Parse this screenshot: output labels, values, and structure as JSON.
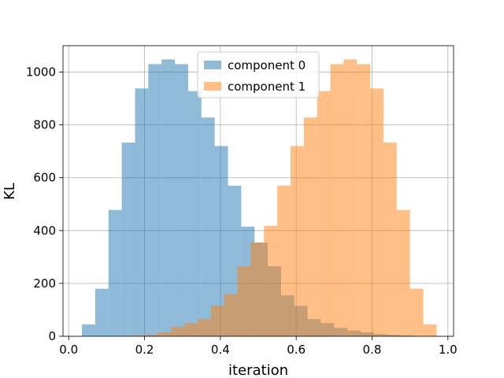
{
  "chart_data": {
    "type": "bar",
    "title": "",
    "xlabel": "iteration",
    "ylabel": "KL",
    "xlim": [
      -0.015,
      1.015
    ],
    "ylim": [
      0,
      1100
    ],
    "xticks": [
      0.0,
      0.2,
      0.4,
      0.6,
      0.8,
      1.0
    ],
    "xtick_labels": [
      "0.0",
      "0.2",
      "0.4",
      "0.6",
      "0.8",
      "1.0"
    ],
    "yticks": [
      0,
      200,
      400,
      600,
      800,
      1000
    ],
    "ytick_labels": [
      "0",
      "200",
      "400",
      "600",
      "800",
      "1000"
    ],
    "grid": true,
    "legend_position": "top-center",
    "series": [
      {
        "name": "component 0",
        "color": "#1f77b4",
        "opacity": 0.5,
        "bins": [
          {
            "x0": 0.035,
            "x1": 0.07,
            "value": 45
          },
          {
            "x0": 0.07,
            "x1": 0.105,
            "value": 180
          },
          {
            "x0": 0.105,
            "x1": 0.14,
            "value": 478
          },
          {
            "x0": 0.14,
            "x1": 0.175,
            "value": 733
          },
          {
            "x0": 0.175,
            "x1": 0.21,
            "value": 938
          },
          {
            "x0": 0.21,
            "x1": 0.245,
            "value": 1030
          },
          {
            "x0": 0.245,
            "x1": 0.28,
            "value": 1048
          },
          {
            "x0": 0.28,
            "x1": 0.315,
            "value": 1030
          },
          {
            "x0": 0.315,
            "x1": 0.35,
            "value": 928
          },
          {
            "x0": 0.35,
            "x1": 0.385,
            "value": 828
          },
          {
            "x0": 0.385,
            "x1": 0.42,
            "value": 720
          },
          {
            "x0": 0.42,
            "x1": 0.455,
            "value": 570
          },
          {
            "x0": 0.455,
            "x1": 0.49,
            "value": 415
          },
          {
            "x0": 0.49,
            "x1": 0.525,
            "value": 355
          },
          {
            "x0": 0.525,
            "x1": 0.56,
            "value": 265
          },
          {
            "x0": 0.56,
            "x1": 0.595,
            "value": 155
          },
          {
            "x0": 0.595,
            "x1": 0.63,
            "value": 115
          },
          {
            "x0": 0.63,
            "x1": 0.665,
            "value": 65
          },
          {
            "x0": 0.665,
            "x1": 0.7,
            "value": 50
          },
          {
            "x0": 0.7,
            "x1": 0.735,
            "value": 32
          },
          {
            "x0": 0.735,
            "x1": 0.77,
            "value": 22
          },
          {
            "x0": 0.77,
            "x1": 0.805,
            "value": 15
          },
          {
            "x0": 0.805,
            "x1": 0.84,
            "value": 8
          },
          {
            "x0": 0.84,
            "x1": 0.875,
            "value": 5
          },
          {
            "x0": 0.875,
            "x1": 0.91,
            "value": 3
          }
        ]
      },
      {
        "name": "component 1",
        "color": "#ff7f0e",
        "opacity": 0.5,
        "bins": [
          {
            "x0": 0.165,
            "x1": 0.2,
            "value": 3
          },
          {
            "x0": 0.2,
            "x1": 0.235,
            "value": 5
          },
          {
            "x0": 0.235,
            "x1": 0.27,
            "value": 14
          },
          {
            "x0": 0.27,
            "x1": 0.305,
            "value": 35
          },
          {
            "x0": 0.305,
            "x1": 0.34,
            "value": 50
          },
          {
            "x0": 0.34,
            "x1": 0.375,
            "value": 65
          },
          {
            "x0": 0.375,
            "x1": 0.41,
            "value": 115
          },
          {
            "x0": 0.41,
            "x1": 0.445,
            "value": 160
          },
          {
            "x0": 0.445,
            "x1": 0.48,
            "value": 265
          },
          {
            "x0": 0.48,
            "x1": 0.515,
            "value": 355
          },
          {
            "x0": 0.515,
            "x1": 0.55,
            "value": 418
          },
          {
            "x0": 0.55,
            "x1": 0.585,
            "value": 570
          },
          {
            "x0": 0.585,
            "x1": 0.62,
            "value": 720
          },
          {
            "x0": 0.62,
            "x1": 0.655,
            "value": 828
          },
          {
            "x0": 0.655,
            "x1": 0.69,
            "value": 928
          },
          {
            "x0": 0.69,
            "x1": 0.725,
            "value": 1030
          },
          {
            "x0": 0.725,
            "x1": 0.76,
            "value": 1048
          },
          {
            "x0": 0.76,
            "x1": 0.795,
            "value": 1030
          },
          {
            "x0": 0.795,
            "x1": 0.83,
            "value": 938
          },
          {
            "x0": 0.83,
            "x1": 0.865,
            "value": 733
          },
          {
            "x0": 0.865,
            "x1": 0.9,
            "value": 478
          },
          {
            "x0": 0.9,
            "x1": 0.935,
            "value": 180
          },
          {
            "x0": 0.935,
            "x1": 0.97,
            "value": 45
          }
        ]
      }
    ]
  }
}
